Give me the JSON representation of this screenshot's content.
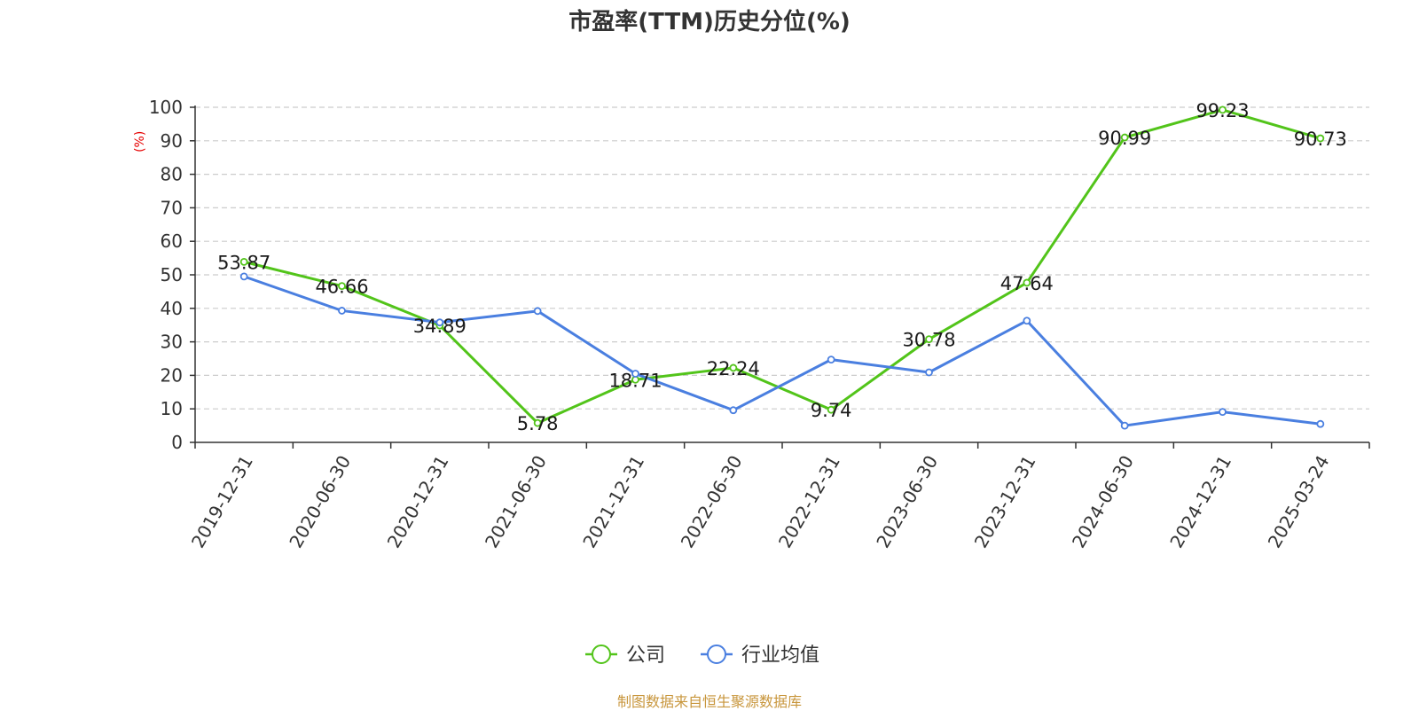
{
  "title": "市盈率(TTM)历史分位(%)",
  "source": "制图数据来自恒生聚源数据库",
  "colors": {
    "company": "#52c41a",
    "industry": "#4a7fe0",
    "unit": "#e60000",
    "grid": "#cccccc",
    "axis": "#333333"
  },
  "chart_data": {
    "type": "line",
    "title": "市盈率(TTM)历史分位(%)",
    "ylabel": "(%)",
    "xlabel": "",
    "ylim": [
      0,
      100
    ],
    "yticks": [
      0,
      10,
      20,
      30,
      40,
      50,
      60,
      70,
      80,
      90,
      100
    ],
    "grid": "horizontal-dashed",
    "legend_position": "bottom-center",
    "categories": [
      "2019-12-31",
      "2020-06-30",
      "2020-12-31",
      "2021-06-30",
      "2021-12-31",
      "2022-06-30",
      "2022-12-31",
      "2023-06-30",
      "2023-12-31",
      "2024-06-30",
      "2024-12-31",
      "2025-03-24"
    ],
    "series": [
      {
        "name": "公司",
        "color": "#52c41a",
        "show_labels": true,
        "values": [
          53.87,
          46.66,
          34.89,
          5.78,
          18.71,
          22.24,
          9.74,
          30.78,
          47.64,
          90.99,
          99.23,
          90.73
        ],
        "labels": [
          "53.87",
          "46.66",
          "34.89",
          "5.78",
          "18.71",
          "22.24",
          "9.74",
          "30.78",
          "47.64",
          "90.99",
          "99.23",
          "90.73"
        ]
      },
      {
        "name": "行业均值",
        "color": "#4a7fe0",
        "show_labels": false,
        "values": [
          49.5,
          39.3,
          35.8,
          39.2,
          20.5,
          9.6,
          24.7,
          20.9,
          36.3,
          5.0,
          9.1,
          5.5
        ]
      }
    ]
  }
}
